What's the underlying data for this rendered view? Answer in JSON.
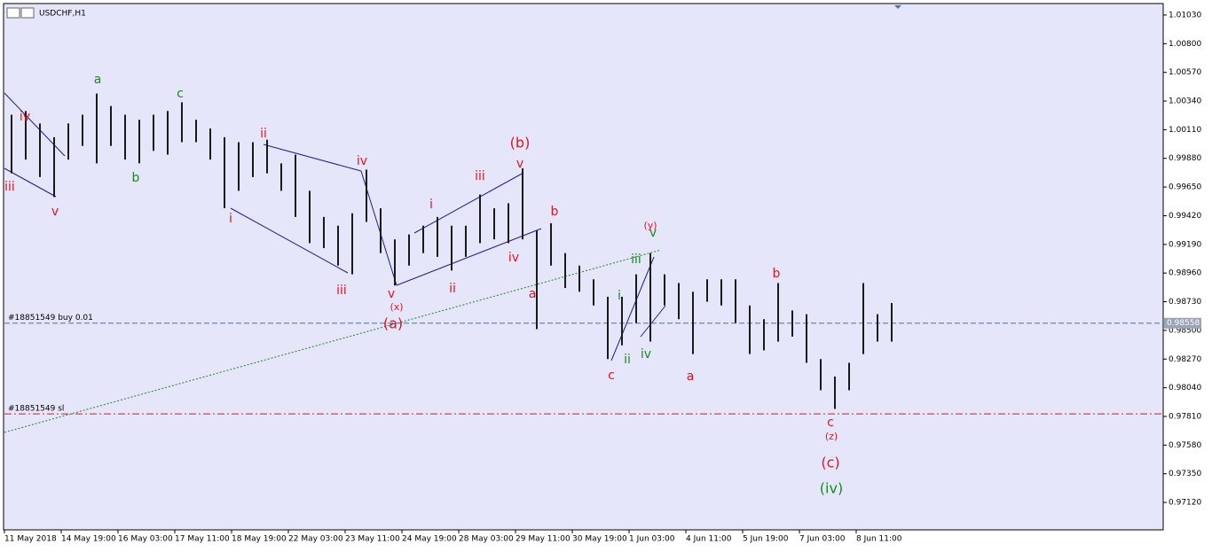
{
  "chart_data": {
    "type": "ohlc",
    "title": "USDCHF,H1",
    "high": [
      1.0023,
      1.0026,
      1.0016,
      1.0005,
      1.0016,
      1.0023,
      1.004,
      1.003,
      1.0023,
      1.0019,
      1.0023,
      1.0026,
      1.0033,
      1.0019,
      1.0012,
      1.0005,
      1.0001,
      1.0001,
      1.0003,
      0.9984,
      0.9991,
      0.9962,
      0.9941,
      0.9934,
      0.9944,
      0.9979,
      0.9948,
      0.9923,
      0.9927,
      0.9934,
      0.9941,
      0.9934,
      0.9934,
      0.9959,
      0.9948,
      0.9952,
      0.998,
      0.993,
      0.9936,
      0.9912,
      0.9902,
      0.9891,
      0.9877,
      0.9877,
      0.9895,
      0.9912,
      0.9895,
      0.9888,
      0.9881,
      0.9891,
      0.9891,
      0.9891,
      0.987,
      0.9859,
      0.9888,
      0.9866,
      0.9863,
      0.9827,
      0.9813,
      0.9824,
      0.9888,
      0.9863,
      0.9872
    ],
    "low": [
      0.9976,
      0.9987,
      0.9973,
      0.9957,
      0.9987,
      0.9998,
      0.9984,
      0.9998,
      0.9987,
      0.9984,
      0.9994,
      0.9991,
      1.0001,
      1.0001,
      0.9987,
      0.9948,
      0.9962,
      0.9973,
      0.9976,
      0.9962,
      0.9941,
      0.992,
      0.9916,
      0.9902,
      0.9895,
      0.9937,
      0.9912,
      0.9886,
      0.9902,
      0.9912,
      0.9909,
      0.9898,
      0.9909,
      0.992,
      0.9923,
      0.992,
      0.9923,
      0.9851,
      0.9902,
      0.9884,
      0.9881,
      0.987,
      0.9827,
      0.9838,
      0.9856,
      0.9841,
      0.987,
      0.9859,
      0.9831,
      0.9873,
      0.987,
      0.9856,
      0.9831,
      0.9834,
      0.9841,
      0.9845,
      0.9824,
      0.9802,
      0.9787,
      0.9802,
      0.9831,
      0.9841,
      0.9841
    ],
    "color": "#1a1a1a",
    "xlim": [
      0,
      81.625
    ],
    "xticks": [
      {
        "value": 0,
        "label": "11 May 2018"
      },
      {
        "value": 4,
        "label": "14 May 19:00"
      },
      {
        "value": 8,
        "label": "16 May 03:00"
      },
      {
        "value": 12,
        "label": "17 May 11:00"
      },
      {
        "value": 16,
        "label": "18 May 19:00"
      },
      {
        "value": 20,
        "label": "22 May 03:00"
      },
      {
        "value": 24,
        "label": "23 May 11:00"
      },
      {
        "value": 28,
        "label": "24 May 19:00"
      },
      {
        "value": 32,
        "label": "28 May 03:00"
      },
      {
        "value": 36,
        "label": "29 May 11:00"
      },
      {
        "value": 40,
        "label": "30 May 19:00"
      },
      {
        "value": 44,
        "label": "1 Jun 03:00"
      },
      {
        "value": 48,
        "label": "4 Jun 11:00"
      },
      {
        "value": 52,
        "label": "5 Jun 19:00"
      },
      {
        "value": 56,
        "label": "7 Jun 03:00"
      },
      {
        "value": 60,
        "label": "8 Jun 11:00"
      }
    ],
    "ylim": [
      0.969,
      1.01115
    ],
    "yticks": [
      {
        "value": 1.0103,
        "label": "1.01030"
      },
      {
        "value": 1.008,
        "label": "1.00800"
      },
      {
        "value": 1.0057,
        "label": "1.00570"
      },
      {
        "value": 1.0034,
        "label": "1.00340"
      },
      {
        "value": 1.0011,
        "label": "1.00110"
      },
      {
        "value": 0.9988,
        "label": "0.99880"
      },
      {
        "value": 0.9965,
        "label": "0.99650"
      },
      {
        "value": 0.9942,
        "label": "0.99420"
      },
      {
        "value": 0.9919,
        "label": "0.99190"
      },
      {
        "value": 0.9896,
        "label": "0.98960"
      },
      {
        "value": 0.9873,
        "label": "0.98730"
      },
      {
        "value": 0.985,
        "label": "0.98500"
      },
      {
        "value": 0.9827,
        "label": "0.98270"
      },
      {
        "value": 0.9804,
        "label": "0.98040"
      },
      {
        "value": 0.9781,
        "label": "0.97810"
      },
      {
        "value": 0.9758,
        "label": "0.97580"
      },
      {
        "value": 0.9735,
        "label": "0.97350"
      },
      {
        "value": 0.9712,
        "label": "0.97120"
      }
    ],
    "orders": [
      {
        "label": "#18851549 buy 0.01",
        "price": {
          "value": 0.98558,
          "label": "0.98558"
        },
        "color": "#5a6f9a"
      },
      {
        "label": "#18851549 sl",
        "price": 0.9783,
        "color": "#e0141e"
      }
    ],
    "annotations": [
      {
        "text": "iii",
        "color": "#e0141e"
      },
      {
        "text": "iv",
        "color": "#e0141e"
      },
      {
        "text": "v",
        "color": "#e0141e"
      },
      {
        "text": "a",
        "color": "#1a8a1a"
      },
      {
        "text": "b",
        "color": "#1a8a1a"
      },
      {
        "text": "c",
        "color": "#1a8a1a"
      },
      {
        "text": "ii",
        "color": "#e0141e"
      },
      {
        "text": "i",
        "color": "#e0141e"
      },
      {
        "text": "iv",
        "color": "#e0141e"
      },
      {
        "text": "iii",
        "color": "#e0141e"
      },
      {
        "text": "v",
        "color": "#e0141e"
      },
      {
        "text": "(x)",
        "color": "#e0141e"
      },
      {
        "text": "(a)",
        "color": "#e0141e"
      },
      {
        "text": "i",
        "color": "#e0141e"
      },
      {
        "text": "ii",
        "color": "#e0141e"
      },
      {
        "text": "iii",
        "color": "#e0141e"
      },
      {
        "text": "(b)",
        "color": "#e0141e"
      },
      {
        "text": "v",
        "color": "#e0141e"
      },
      {
        "text": "iv",
        "color": "#e0141e"
      },
      {
        "text": "a",
        "color": "#e0141e"
      },
      {
        "text": "b",
        "color": "#e0141e"
      },
      {
        "text": "(y)",
        "color": "#e0141e"
      },
      {
        "text": "v",
        "color": "#1a8a1a"
      },
      {
        "text": "iii",
        "color": "#1a8a1a"
      },
      {
        "text": "i",
        "color": "#1a8a1a"
      },
      {
        "text": "ii",
        "color": "#1a8a1a"
      },
      {
        "text": "iv",
        "color": "#1a8a1a"
      },
      {
        "text": "c",
        "color": "#e0141e"
      },
      {
        "text": "a",
        "color": "#e0141e"
      },
      {
        "text": "b",
        "color": "#e0141e"
      },
      {
        "text": "c",
        "color": "#e0141e"
      },
      {
        "text": "(z)",
        "color": "#e0141e"
      },
      {
        "text": "(c)",
        "color": "#e0141e"
      },
      {
        "text": "(iv)",
        "color": "#1a8a1a"
      }
    ]
  }
}
